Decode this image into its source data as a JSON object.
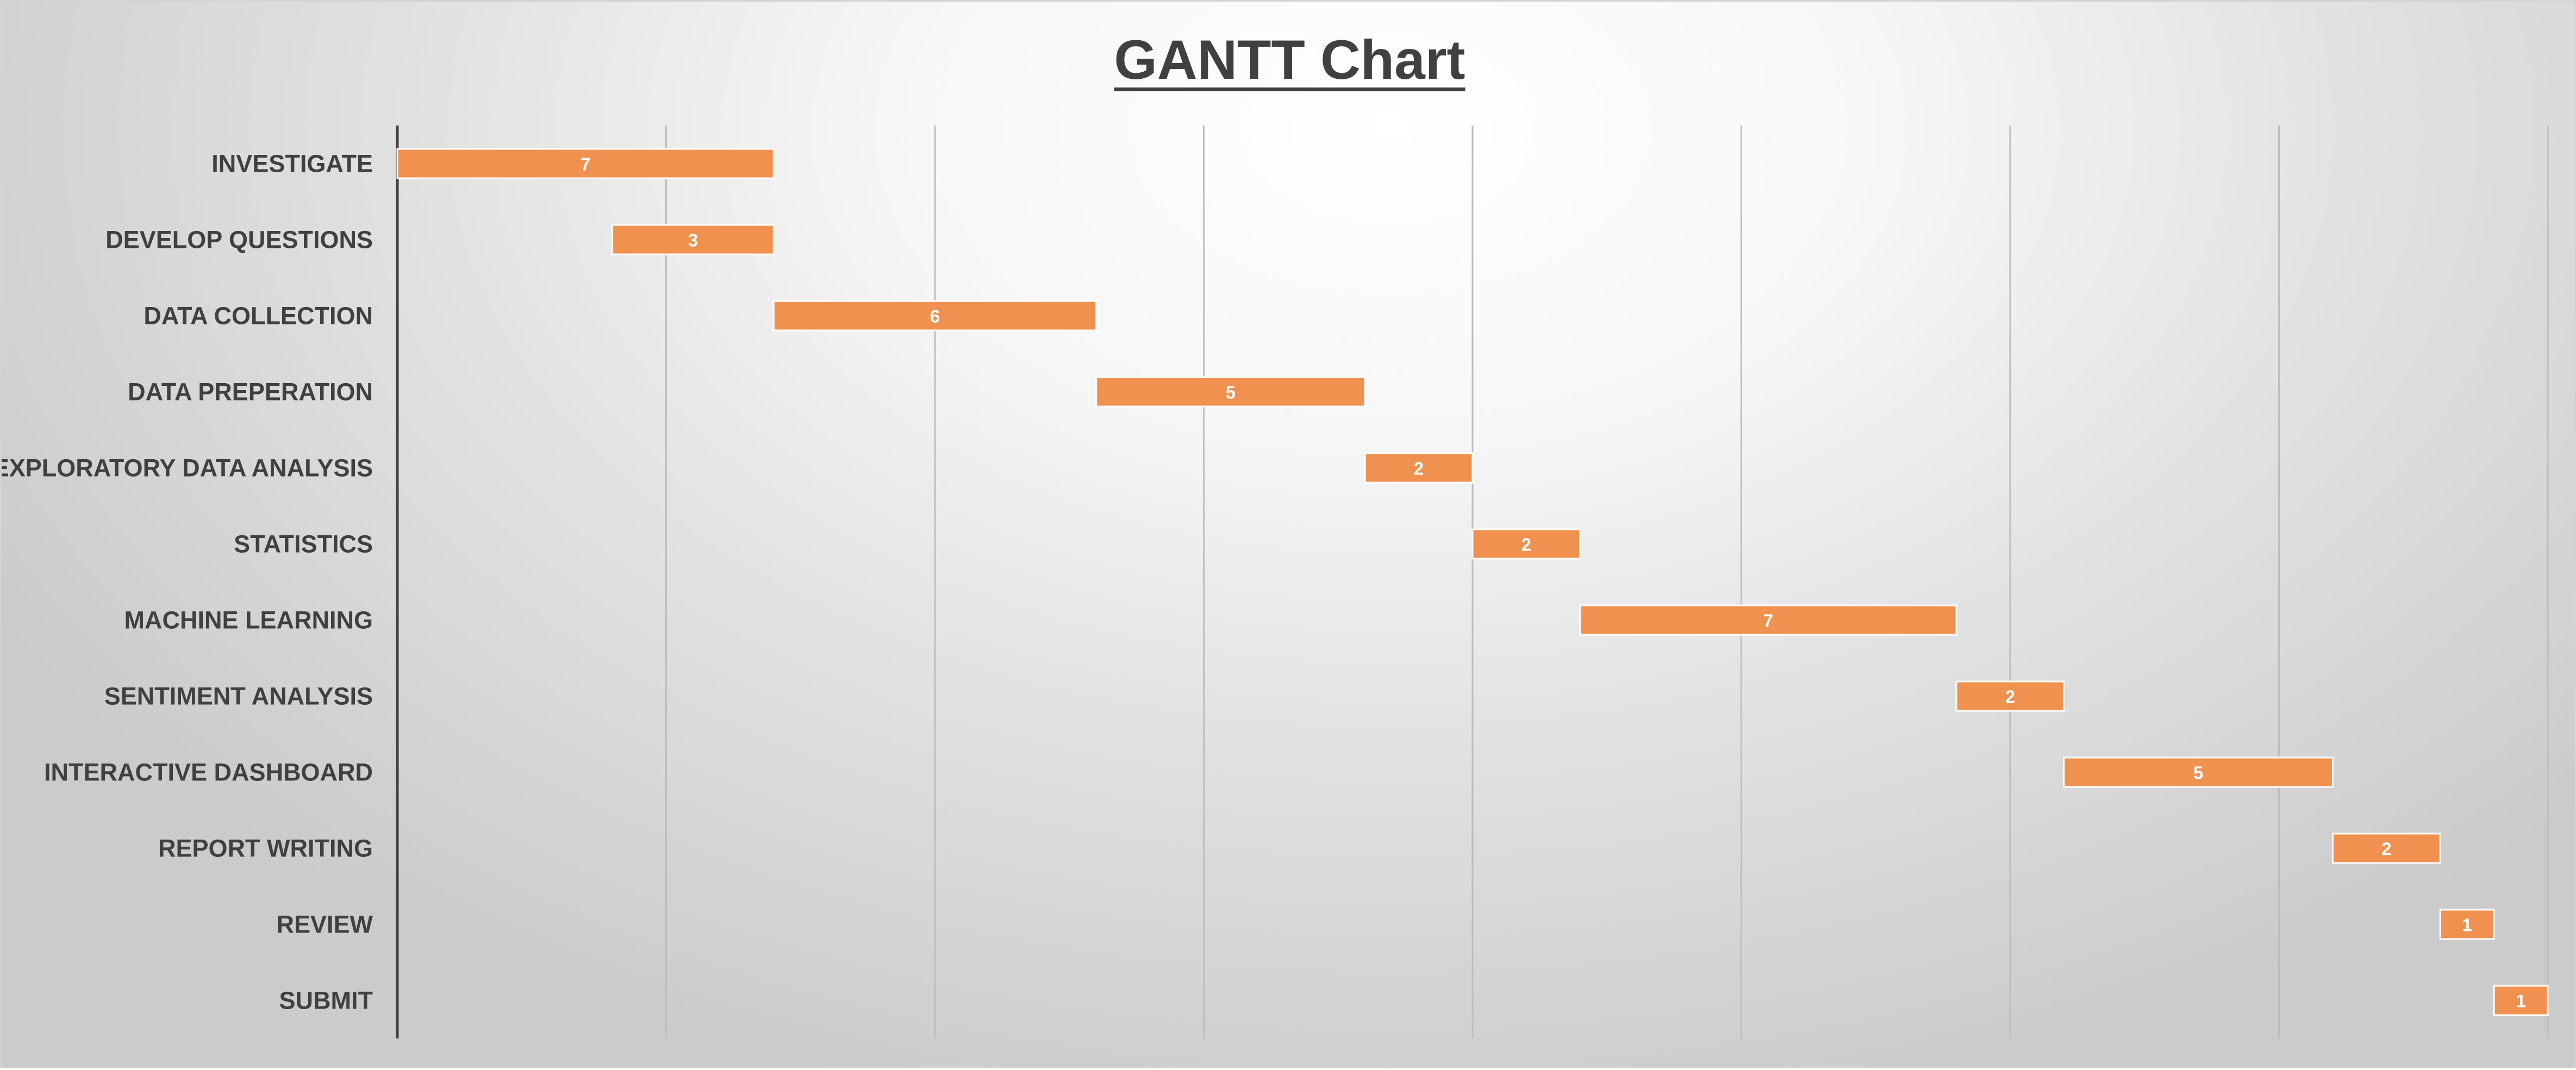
{
  "chart_data": {
    "type": "bar",
    "orientation": "horizontal",
    "subtype": "gantt",
    "title": "GANTT Chart",
    "xlabel": "",
    "ylabel": "",
    "xlim": [
      0,
      40
    ],
    "x_tick_step": 5,
    "x_tick_labels_visible": false,
    "grid": "vertical",
    "legend": "none",
    "bar_color": "#F0914F",
    "tasks": [
      {
        "name": "INVESTIGATE",
        "start": 0,
        "duration": 7,
        "label": "7"
      },
      {
        "name": "DEVELOP QUESTIONS",
        "start": 4,
        "duration": 3,
        "label": "3"
      },
      {
        "name": "DATA COLLECTION",
        "start": 7,
        "duration": 6,
        "label": "6"
      },
      {
        "name": "DATA PREPERATION",
        "start": 13,
        "duration": 5,
        "label": "5"
      },
      {
        "name": "EXPLORATORY DATA ANALYSIS",
        "start": 18,
        "duration": 2,
        "label": "2"
      },
      {
        "name": "STATISTICS",
        "start": 20,
        "duration": 2,
        "label": "2"
      },
      {
        "name": "MACHINE LEARNING",
        "start": 22,
        "duration": 7,
        "label": "7"
      },
      {
        "name": "SENTIMENT ANALYSIS",
        "start": 29,
        "duration": 2,
        "label": "2"
      },
      {
        "name": "INTERACTIVE DASHBOARD",
        "start": 31,
        "duration": 5,
        "label": "5"
      },
      {
        "name": "REPORT WRITING",
        "start": 36,
        "duration": 2,
        "label": "2"
      },
      {
        "name": "REVIEW",
        "start": 38,
        "duration": 1,
        "label": "1"
      },
      {
        "name": "SUBMIT",
        "start": 39,
        "duration": 1,
        "label": "1"
      }
    ]
  }
}
